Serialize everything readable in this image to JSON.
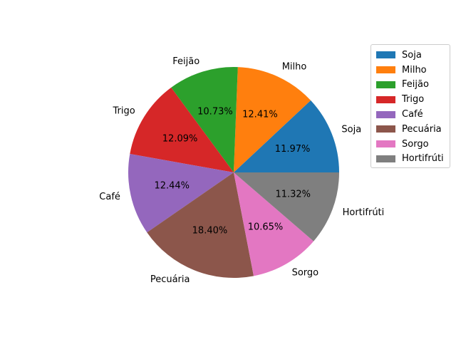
{
  "chart_data": {
    "type": "pie",
    "title": "",
    "categories": [
      "Soja",
      "Milho",
      "Feijão",
      "Trigo",
      "Café",
      "Pecuária",
      "Sorgo",
      "Hortifrúti"
    ],
    "values": [
      11.97,
      12.41,
      10.73,
      12.09,
      12.44,
      18.4,
      10.65,
      11.32
    ],
    "percent_labels": [
      "11.97%",
      "12.41%",
      "10.73%",
      "12.09%",
      "12.44%",
      "18.40%",
      "10.65%",
      "11.32%"
    ],
    "colors": [
      "#1f77b4",
      "#ff7f0e",
      "#2ca02c",
      "#d62728",
      "#9467bd",
      "#8c564b",
      "#e377c2",
      "#7f7f7f"
    ],
    "start_angle_deg": 0,
    "direction": "counterclockwise",
    "legend_position": "top-right"
  }
}
